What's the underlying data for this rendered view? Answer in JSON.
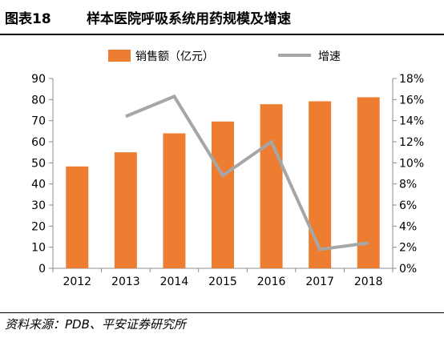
{
  "figure": {
    "number": "图表18",
    "title": "样本医院呼吸系统用药规模及增速",
    "source": "资料来源：PDB、平安证券研究所"
  },
  "colors": {
    "bar": "#ED7D31",
    "line": "#A6A6A6",
    "axis": "#8C8C8C",
    "text": "#000000"
  },
  "chart_data": {
    "type": "bar",
    "categories": [
      "2012",
      "2013",
      "2014",
      "2015",
      "2016",
      "2017",
      "2018"
    ],
    "series": [
      {
        "name": "销售额（亿元）",
        "type": "bar",
        "axis": "left",
        "values": [
          48.3,
          55.0,
          64.0,
          69.6,
          77.8,
          79.2,
          81.1
        ]
      },
      {
        "name": "增速",
        "type": "line",
        "axis": "right",
        "values": [
          null,
          14.4,
          16.3,
          8.8,
          12.0,
          1.8,
          2.4
        ]
      }
    ],
    "ylim": [
      0,
      90
    ],
    "yticks": [
      "0",
      "10",
      "20",
      "30",
      "40",
      "50",
      "60",
      "70",
      "80",
      "90"
    ],
    "y2lim": [
      0,
      18
    ],
    "y2ticks": [
      "0%",
      "2%",
      "4%",
      "6%",
      "8%",
      "10%",
      "12%",
      "14%",
      "16%",
      "18%"
    ],
    "legend": "top",
    "grid": false
  }
}
